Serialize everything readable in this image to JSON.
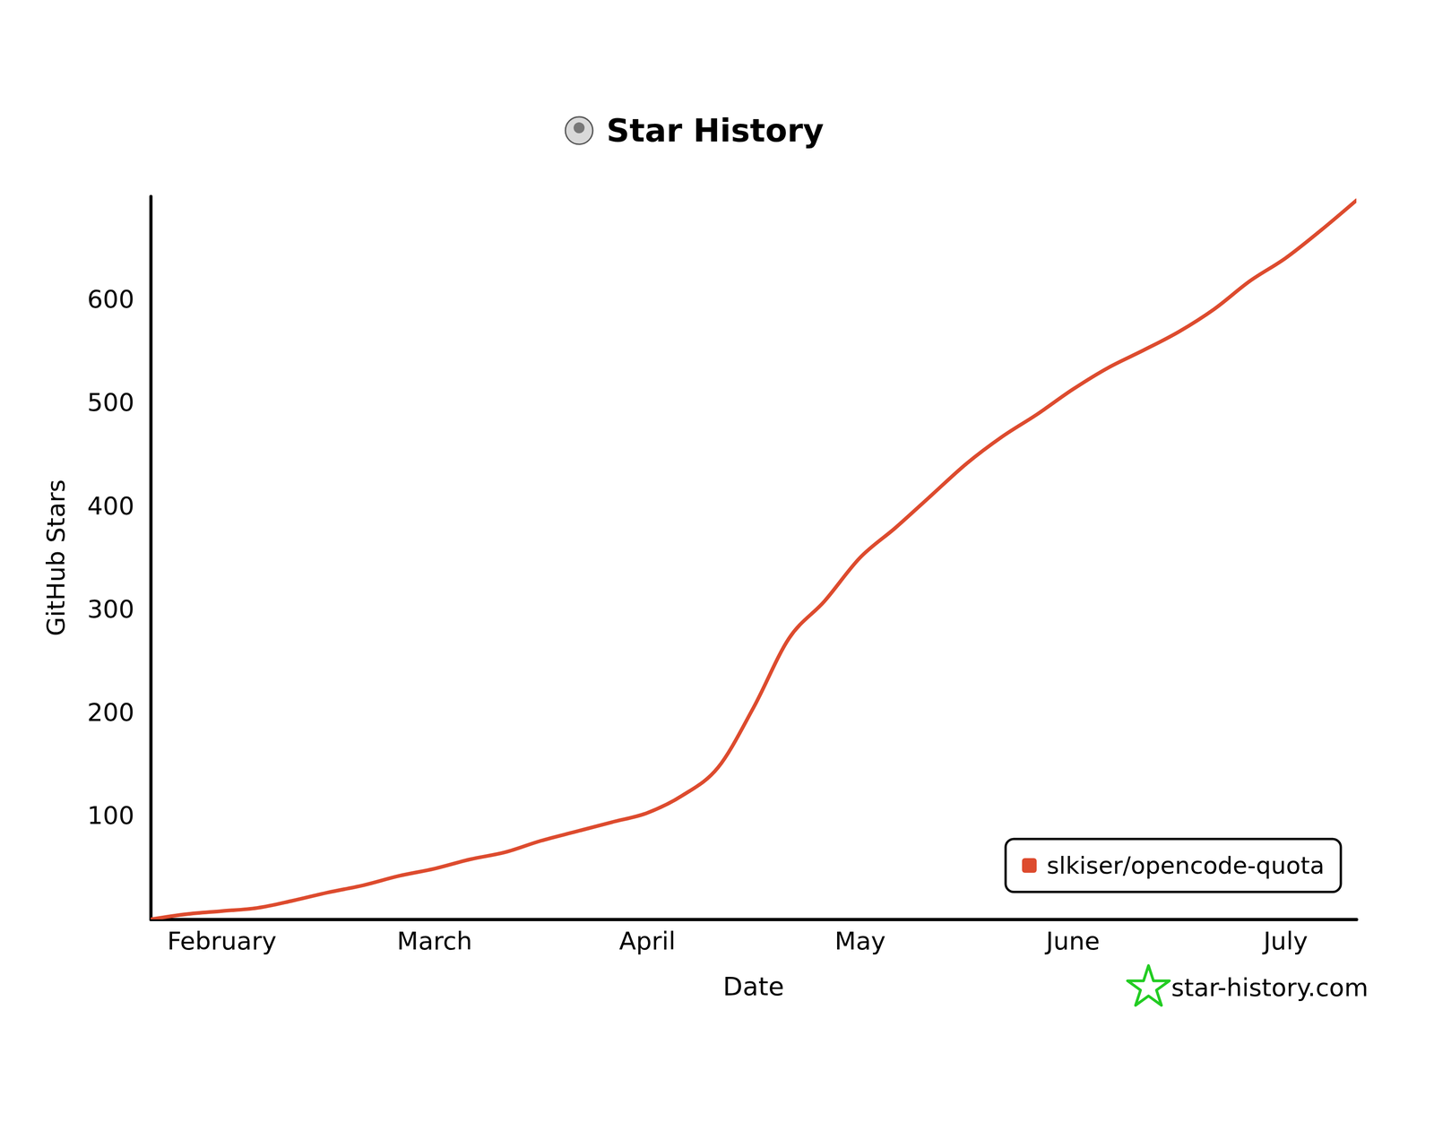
{
  "chart_data": {
    "type": "line",
    "title": "Star History",
    "x_label": "Date",
    "y_label": "GitHub Stars",
    "categories": [
      null,
      null,
      "February",
      null,
      null,
      null,
      null,
      null,
      "March",
      null,
      null,
      null,
      null,
      null,
      "April",
      null,
      null,
      null,
      null,
      null,
      "May",
      null,
      null,
      null,
      null,
      null,
      "June",
      null,
      null,
      null,
      null,
      null,
      "July",
      null,
      null
    ],
    "series": [
      {
        "name": "slkiser/opencode-quota",
        "color": "#dd4b2e",
        "values": [
          0,
          5,
          8,
          11,
          18,
          26,
          33,
          42,
          49,
          58,
          65,
          76,
          85,
          94,
          103,
          120,
          147,
          205,
          272,
          308,
          350,
          379,
          410,
          441,
          467,
          489,
          513,
          534,
          551,
          569,
          591,
          618,
          640,
          667,
          696
        ]
      }
    ],
    "ylim": [
      0,
      700
    ],
    "yticks": [
      100,
      200,
      300,
      400,
      500,
      600
    ],
    "grid": false,
    "legend": "lower right",
    "annotations": [
      "star-history.com"
    ]
  }
}
